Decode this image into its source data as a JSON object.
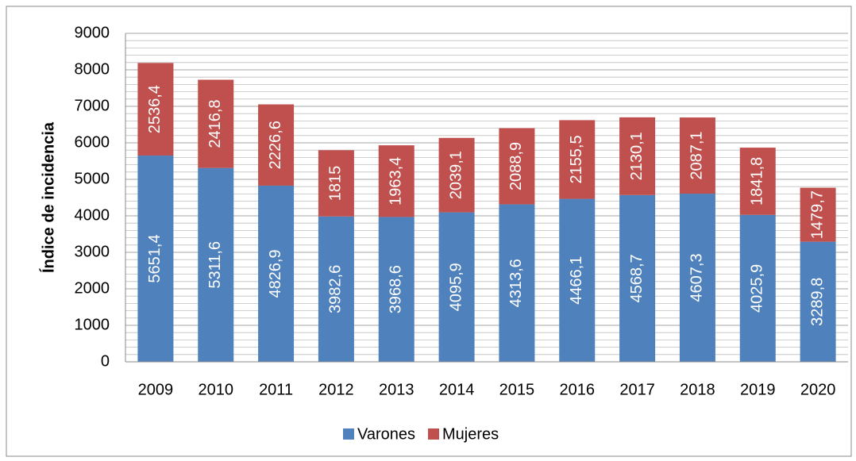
{
  "chart_data": {
    "type": "stacked_bar",
    "y_label": "Índice de incidencia",
    "categories": [
      "2009",
      "2010",
      "2011",
      "2012",
      "2013",
      "2014",
      "2015",
      "2016",
      "2017",
      "2018",
      "2019",
      "2020"
    ],
    "series": [
      {
        "name": "Varones",
        "color": "#4f81bd",
        "values": [
          5651.4,
          5311.6,
          4826.9,
          3982.6,
          3968.6,
          4095.9,
          4313.6,
          4466.1,
          4568.7,
          4607.3,
          4025.9,
          3289.8
        ],
        "value_labels": [
          "5651,4",
          "5311,6",
          "4826,9",
          "3982,6",
          "3968,6",
          "4095,9",
          "4313,6",
          "4466,1",
          "4568,7",
          "4607,3",
          "4025,9",
          "3289,8"
        ]
      },
      {
        "name": "Mujeres",
        "color": "#c0504d",
        "values": [
          2536.4,
          2416.8,
          2226.6,
          1815,
          1963.4,
          2039.1,
          2088.9,
          2155.5,
          2130.1,
          2087.1,
          1841.8,
          1479.7
        ],
        "value_labels": [
          "2536,4",
          "2416,8",
          "2226,6",
          "1815",
          "1963,4",
          "2039,1",
          "2088,9",
          "2155,5",
          "2130,1",
          "2087,1",
          "1841,8",
          "1479,7"
        ]
      }
    ],
    "ylim": [
      0,
      9000
    ],
    "yticks": [
      0,
      1000,
      2000,
      3000,
      4000,
      5000,
      6000,
      7000,
      8000,
      9000
    ],
    "minor_yticks": [
      200,
      400,
      600,
      800,
      1200,
      1400,
      1600,
      1800,
      2200,
      2400,
      2600,
      2800,
      3200,
      3400,
      3600,
      3800,
      4200,
      4400,
      4600,
      4800,
      5200,
      5400,
      5600,
      5800,
      6200,
      6400,
      6600,
      6800,
      7200,
      7400,
      7600,
      7800,
      8200,
      8400,
      8600,
      8800
    ],
    "grid": true,
    "legend": "bottom"
  }
}
